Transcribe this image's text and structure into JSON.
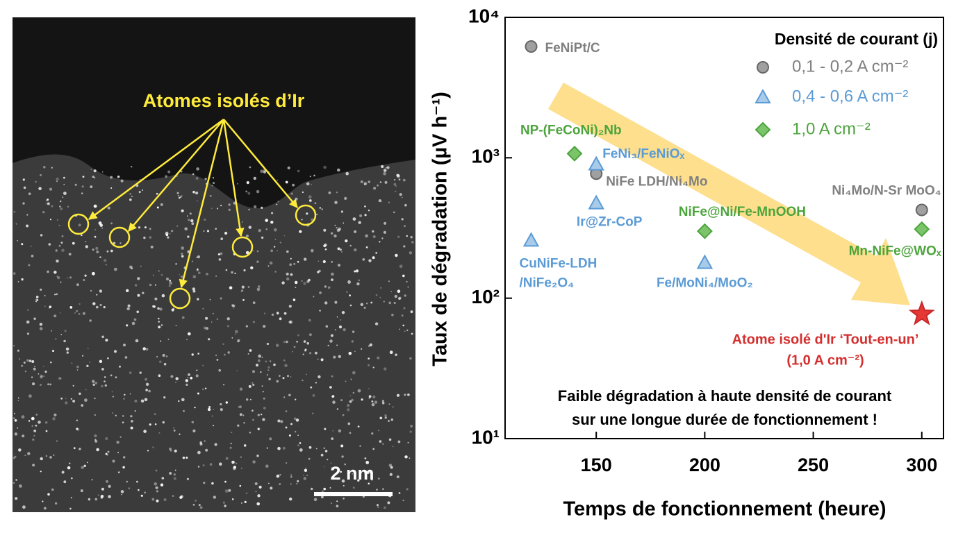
{
  "image": {
    "label": "Atomes isolés d’Ir",
    "scale_bar": "2 nm"
  },
  "chart_data": {
    "type": "scatter",
    "log_y": true,
    "xlabel": "Temps de fonctionnement (heure)",
    "ylabel": "Taux de dégradation (µV h⁻¹)",
    "xlim": [
      108,
      310
    ],
    "ylim": [
      10,
      10000
    ],
    "xticks": [
      150,
      200,
      250,
      300
    ],
    "yticks": [
      {
        "value": 10,
        "label": "10¹"
      },
      {
        "value": 100,
        "label": "10²"
      },
      {
        "value": 1000,
        "label": "10³"
      },
      {
        "value": 10000,
        "label": "10⁴"
      }
    ],
    "legend_title": "Densité de courant (j)",
    "legend_position": "upper right",
    "series": [
      {
        "name": "0,1 - 0,2 A cm⁻²",
        "color": "#808080",
        "marker": "circle",
        "x": [
          120,
          150,
          300
        ],
        "values": [
          6200,
          770,
          425
        ],
        "labels": [
          [
            "FeNiPt/C"
          ],
          [
            "NiFe LDH/Ni₄Mo"
          ],
          [
            "Ni₄Mo/N-Sr MoO₄"
          ]
        ]
      },
      {
        "name": "0,4 - 0,6 A cm⁻²",
        "color": "#5b9bd5",
        "marker": "triangle",
        "x": [
          120,
          150,
          150,
          200
        ],
        "values": [
          258,
          900,
          476,
          179
        ],
        "labels": [
          [
            "CuNiFe-LDH",
            "/NiFe₂O₄"
          ],
          [
            "FeNi₃/FeNiOₓ"
          ],
          [
            "Ir@Zr-CoP"
          ],
          [
            "Fe/MoNi₄/MoO₂"
          ]
        ]
      },
      {
        "name": "1,0 A cm⁻²",
        "color": "#4ca43c",
        "marker": "diamond",
        "x": [
          140,
          200,
          300
        ],
        "values": [
          1070,
          300,
          310
        ],
        "labels": [
          [
            "NP-(FeCoNi)₂Nb"
          ],
          [
            "NiFe@Ni/Fe-MnOOH"
          ],
          [
            "Mn-NiFe@WOₓ"
          ]
        ]
      }
    ],
    "highlight": {
      "x": 300,
      "value": 77,
      "color": "#e53935",
      "marker": "star",
      "label": [
        "Atome isolé d'Ir ‘Tout-en-un’",
        "(1,0 A cm⁻²)"
      ]
    },
    "annotation": [
      "Faible dégradation à haute densité de courant",
      "sur une longue durée de fonctionnement !"
    ]
  }
}
